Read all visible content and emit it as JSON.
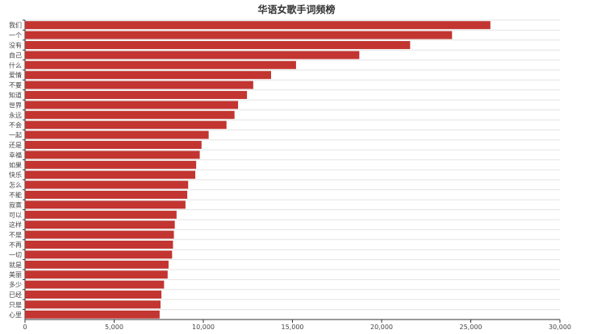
{
  "chart_data": {
    "type": "bar",
    "orientation": "horizontal",
    "title": "华语女歌手词频榜",
    "xlabel": "",
    "ylabel": "",
    "xlim": [
      0,
      30000
    ],
    "x_ticks": [
      "0",
      "5,000",
      "10,000",
      "15,000",
      "20,000",
      "25,000",
      "30,000"
    ],
    "x_tick_values": [
      0,
      5000,
      10000,
      15000,
      20000,
      25000,
      30000
    ],
    "grid": true,
    "bar_color": "#c23531",
    "categories": [
      "我们",
      "一个",
      "没有",
      "自己",
      "什么",
      "爱情",
      "不要",
      "知道",
      "世界",
      "永远",
      "不会",
      "一起",
      "还是",
      "幸福",
      "如果",
      "快乐",
      "怎么",
      "不能",
      "寂寞",
      "可以",
      "这样",
      "不是",
      "不再",
      "一切",
      "就是",
      "美丽",
      "多少",
      "已经",
      "只是",
      "心里"
    ],
    "values": [
      26100,
      23950,
      21600,
      18750,
      15200,
      13800,
      12800,
      12450,
      11950,
      11750,
      11300,
      10300,
      9900,
      9800,
      9600,
      9550,
      9150,
      9100,
      9000,
      8500,
      8400,
      8350,
      8300,
      8250,
      8050,
      8000,
      7800,
      7650,
      7600,
      7550
    ]
  }
}
